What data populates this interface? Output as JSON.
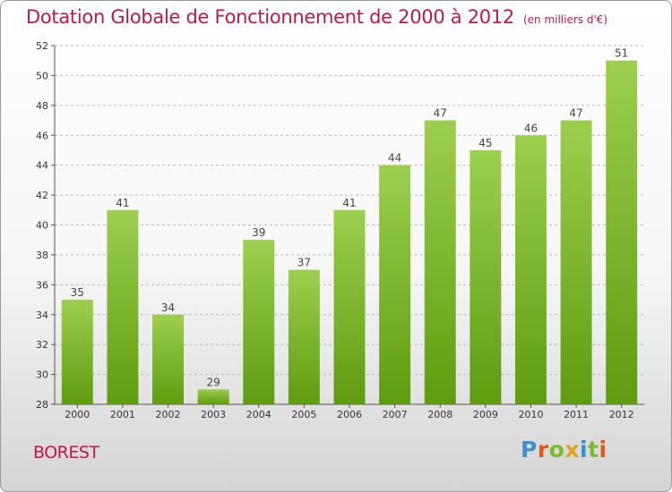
{
  "title": "Dotation Globale de Fonctionnement de 2000 à 2012",
  "subtitle": "(en milliers d'€)",
  "location": "BOREST",
  "logo": {
    "text": "Proxiti",
    "letter_colors": [
      "#3f8fd0",
      "#e05a1e",
      "#7dbb2f",
      "#e3a11a",
      "#2f8fd0",
      "#7dbb2f",
      "#e05a1e"
    ]
  },
  "colors": {
    "bar_light": "#9ccf4e",
    "bar_dark": "#5e9c10",
    "title": "#c0174a",
    "grid": "#b8b8b8"
  },
  "chart_data": {
    "type": "bar",
    "categories": [
      "2000",
      "2001",
      "2002",
      "2003",
      "2004",
      "2005",
      "2006",
      "2007",
      "2008",
      "2009",
      "2010",
      "2011",
      "2012"
    ],
    "values": [
      35,
      41,
      34,
      29,
      39,
      37,
      41,
      44,
      47,
      45,
      46,
      47,
      51
    ],
    "ylim": [
      28,
      52
    ],
    "yticks": [
      28,
      30,
      32,
      34,
      36,
      38,
      40,
      42,
      44,
      46,
      48,
      50,
      52
    ],
    "grid": true,
    "data_labels": true
  }
}
